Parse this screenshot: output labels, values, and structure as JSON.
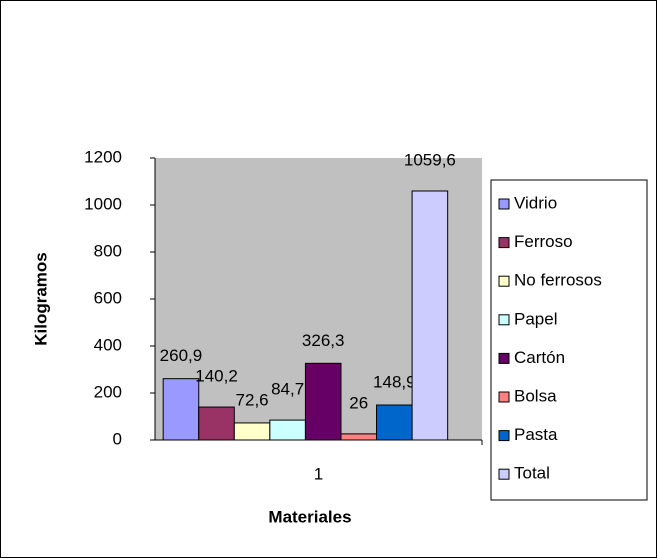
{
  "chart_data": {
    "type": "bar",
    "categories": [
      "1"
    ],
    "x_label": "Materiales",
    "y_label": "Kilogramos",
    "ylim": [
      0,
      1200
    ],
    "yticks": [
      0,
      200,
      400,
      600,
      800,
      1000,
      1200
    ],
    "grid": false,
    "legend": "right",
    "series": [
      {
        "name": "Vidrio",
        "color": "#9999ff",
        "values": [
          260.9
        ],
        "value_labels": [
          "260,9"
        ]
      },
      {
        "name": "Ferroso",
        "color": "#993366",
        "values": [
          140.2
        ],
        "value_labels": [
          "140,2"
        ]
      },
      {
        "name": "No ferrosos",
        "color": "#ffffcc",
        "values": [
          72.6
        ],
        "value_labels": [
          "72,6"
        ]
      },
      {
        "name": "Papel",
        "color": "#ccffff",
        "values": [
          84.7
        ],
        "value_labels": [
          "84,7"
        ]
      },
      {
        "name": "Cartón",
        "color": "#660066",
        "values": [
          326.3
        ],
        "value_labels": [
          "326,3"
        ]
      },
      {
        "name": "Bolsa",
        "color": "#ff8080",
        "values": [
          26
        ]
      },
      {
        "name": "Pasta",
        "color": "#0066cc",
        "values": [
          148.9
        ],
        "value_labels": [
          "148,9"
        ]
      },
      {
        "name": "Total",
        "color": "#ccccff",
        "values": [
          1059.6
        ],
        "value_labels": [
          "1059,6"
        ]
      }
    ]
  }
}
